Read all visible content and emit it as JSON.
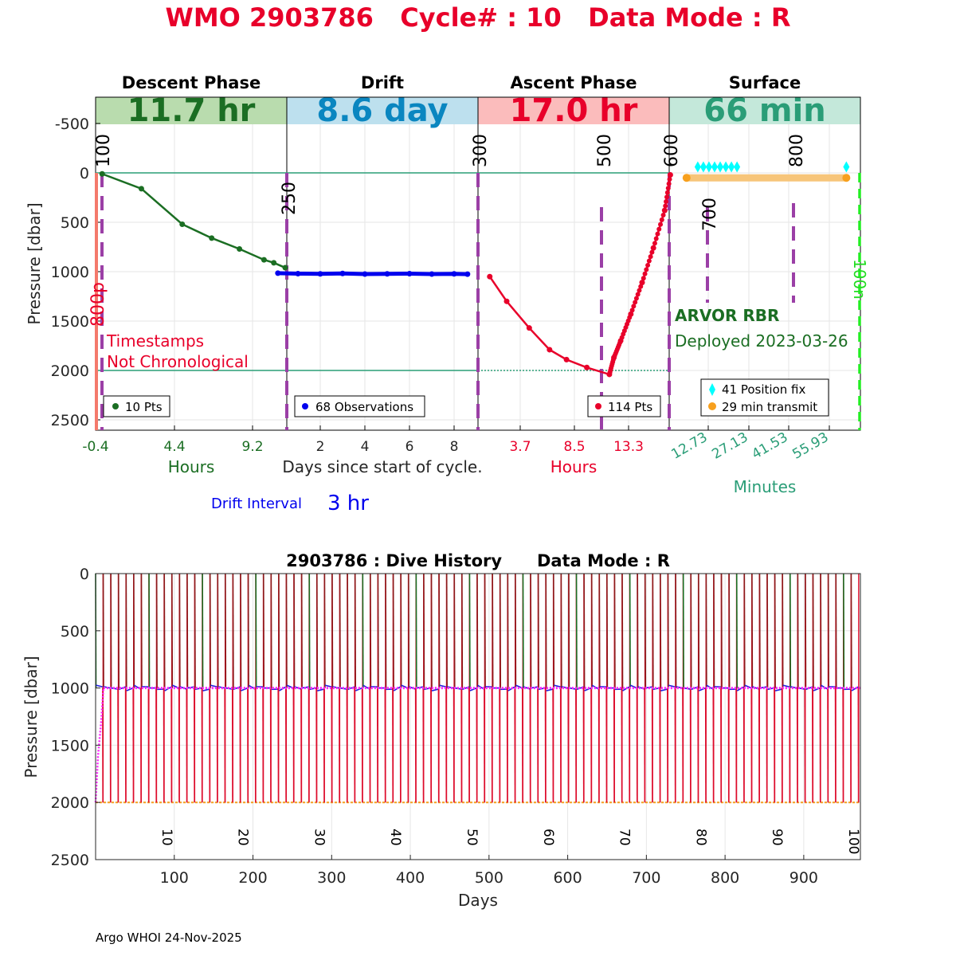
{
  "header": {
    "title": "WMO 2903786   Cycle# : 10   Data Mode : R",
    "colors": {
      "title": "#e8002a"
    }
  },
  "phases": [
    {
      "name": "Descent Phase",
      "duration": "11.7 hr",
      "bg": "#b9dcae",
      "fg": "#1b6e23"
    },
    {
      "name": "Drift",
      "duration": "8.6 day",
      "bg": "#bde0ee",
      "fg": "#0a86c0"
    },
    {
      "name": "Ascent Phase",
      "duration": "17.0 hr",
      "bg": "#fbbcbc",
      "fg": "#e8002a"
    },
    {
      "name": "Surface",
      "duration": "66 min",
      "bg": "#c4e8da",
      "fg": "#2a9d77"
    }
  ],
  "top_chart": {
    "ylabel": "Pressure [dbar]",
    "yticks": [
      "-500",
      "0",
      "500",
      "1000",
      "1500",
      "2000",
      "2500"
    ],
    "ylim": [
      -750,
      2600
    ],
    "marker_labels": [
      "100",
      "250",
      "300",
      "500",
      "600",
      "700",
      "800",
      "800p",
      "100n"
    ],
    "descent_xticks": [
      "-0.4",
      "4.4",
      "9.2"
    ],
    "descent_xlabel": "Hours",
    "drift_xticks": [
      "2",
      "4",
      "6",
      "8"
    ],
    "drift_xlabel": "Days since start of cycle.",
    "ascent_xticks": [
      "3.7",
      "8.5",
      "13.3"
    ],
    "ascent_xlabel": "Hours",
    "surface_xticks": [
      "12.73",
      "27.13",
      "41.53",
      "55.93"
    ],
    "surface_xlabel": "Minutes",
    "drift_interval_label": "Drift Interval",
    "drift_interval_value": "3 hr",
    "warning_line1": "Timestamps",
    "warning_line2": "Not Chronological",
    "float_type": "ARVOR RBR",
    "deployed": "Deployed 2023-03-26",
    "legends": {
      "descent": "10 Pts",
      "drift": "68 Observations",
      "ascent": "114 Pts",
      "surface_fix": "41 Position fix",
      "surface_transmit": "29 min transmit"
    }
  },
  "chart_data": [
    {
      "type": "line",
      "title": "Descent Phase",
      "xlabel": "Hours",
      "ylabel": "Pressure [dbar]",
      "x": [
        0.0,
        2.4,
        4.9,
        6.7,
        8.4,
        9.9,
        10.5,
        11.2
      ],
      "y": [
        10,
        160,
        520,
        660,
        770,
        880,
        910,
        960
      ],
      "color": "#1b6e23"
    },
    {
      "type": "line",
      "title": "Drift",
      "xlabel": "Days since start of cycle.",
      "ylabel": "Pressure [dbar]",
      "x": [
        0.1,
        1.0,
        2.0,
        3.0,
        4.0,
        5.0,
        6.0,
        7.0,
        8.0,
        8.6
      ],
      "y": [
        1015,
        1020,
        1022,
        1018,
        1024,
        1022,
        1020,
        1024,
        1022,
        1025
      ],
      "color": "#0000ee"
    },
    {
      "type": "line",
      "title": "Ascent Phase",
      "xlabel": "Hours",
      "ylabel": "Pressure [dbar]",
      "x": [
        1.0,
        2.5,
        4.5,
        6.3,
        7.8,
        9.6,
        11.6,
        12.0,
        12.6,
        13.5,
        14.5,
        15.5,
        16.5,
        17.0
      ],
      "y": [
        1050,
        1300,
        1570,
        1790,
        1890,
        1970,
        2040,
        1870,
        1700,
        1430,
        1110,
        760,
        380,
        20
      ],
      "color": "#e8002a"
    },
    {
      "type": "scatter",
      "title": "Surface",
      "xlabel": "Minutes",
      "series": [
        {
          "name": "41 Position fix",
          "x": [
            9,
            11,
            13,
            15,
            17,
            19,
            21,
            23,
            62
          ],
          "y": [
            -60,
            -60,
            -60,
            -60,
            -60,
            -60,
            -60,
            -60,
            -60
          ],
          "color": "#00ffff"
        },
        {
          "name": "29 min transmit",
          "x": [
            5,
            62
          ],
          "y": [
            50,
            50
          ],
          "color": "#f7a01e"
        }
      ]
    },
    {
      "type": "line",
      "title": "2903786 : Dive History      Data Mode : R",
      "xlabel": "Days",
      "ylabel": "Pressure [dbar]",
      "ylim": [
        0,
        2500
      ],
      "xlim": [
        0,
        972
      ],
      "xticks": [
        "100",
        "200",
        "300",
        "400",
        "500",
        "600",
        "700",
        "800",
        "900"
      ],
      "yticks": [
        "0",
        "500",
        "1000",
        "1500",
        "2000",
        "2500"
      ],
      "cycle_labels": [
        "10",
        "20",
        "30",
        "40",
        "50",
        "60",
        "70",
        "80",
        "90",
        "100"
      ],
      "cycles": 100,
      "cycle_days": 9.7,
      "park_pressure": 1000,
      "profile_pressure": 2000
    }
  ],
  "footer": {
    "credit": "Argo WHOI 24-Nov-2025"
  }
}
